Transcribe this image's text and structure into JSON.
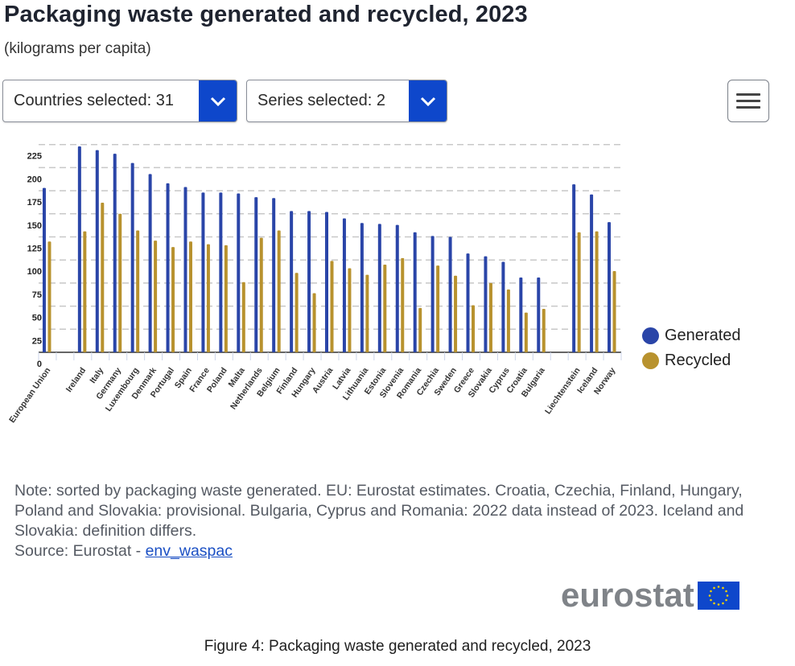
{
  "header": {
    "title": "Packaging waste generated and recycled, 2023",
    "subtitle": "(kilograms per capita)"
  },
  "controls": {
    "countries_dropdown": "Countries selected: 31",
    "series_dropdown": "Series selected: 2",
    "menu_icon": "hamburger-menu-icon"
  },
  "colors": {
    "generated": "#2a45a8",
    "recycled": "#b8922e",
    "accent": "#0e47cb"
  },
  "chart_data": {
    "type": "bar",
    "title": "Packaging waste generated and recycled, 2023",
    "subtitle": "(kilograms per capita)",
    "xlabel": "",
    "ylabel": "",
    "ylim": [
      0,
      225
    ],
    "yticks": [
      0,
      25,
      50,
      75,
      100,
      125,
      150,
      175,
      200,
      225
    ],
    "grid": true,
    "legend_position": "right",
    "categories": [
      "European Union",
      "",
      "Ireland",
      "Italy",
      "Germany",
      "Luxembourg",
      "Denmark",
      "Portugal",
      "Spain",
      "France",
      "Poland",
      "Malta",
      "Netherlands",
      "Belgium",
      "Finland",
      "Hungary",
      "Austria",
      "Latvia",
      "Lithuania",
      "Estonia",
      "Slovenia",
      "Romania",
      "Czechia",
      "Sweden",
      "Greece",
      "Slovakia",
      "Cyprus",
      "Croatia",
      "Bulgaria",
      "",
      "Liechtenstein",
      "Iceland",
      "Norway"
    ],
    "series": [
      {
        "name": "Generated",
        "values": [
          178,
          null,
          223,
          219,
          215,
          205,
          193,
          183,
          179,
          173,
          173,
          172,
          168,
          167,
          153,
          153,
          152,
          145,
          140,
          139,
          138,
          130,
          126,
          125,
          107,
          104,
          98,
          81,
          81,
          null,
          182,
          171,
          141
        ]
      },
      {
        "name": "Recycled",
        "values": [
          120,
          null,
          131,
          162,
          150,
          132,
          121,
          114,
          120,
          117,
          116,
          76,
          124,
          132,
          86,
          64,
          99,
          91,
          84,
          95,
          102,
          48,
          94,
          83,
          51,
          75,
          68,
          43,
          47,
          null,
          130,
          131,
          88
        ]
      }
    ]
  },
  "legend": {
    "items": [
      "Generated",
      "Recycled"
    ]
  },
  "footer": {
    "note": "Note: sorted by packaging waste generated. EU: Eurostat estimates. Croatia, Czechia, Finland, Hungary, Poland and Slovakia: provisional. Bulgaria, Cyprus and Romania: 2022 data instead of 2023. Iceland and Slovakia: definition differs.",
    "source_prefix": "Source: Eurostat - ",
    "source_link": "env_waspac",
    "logo_text": "eurostat",
    "caption": "Figure 4: Packaging waste generated and recycled, 2023"
  }
}
